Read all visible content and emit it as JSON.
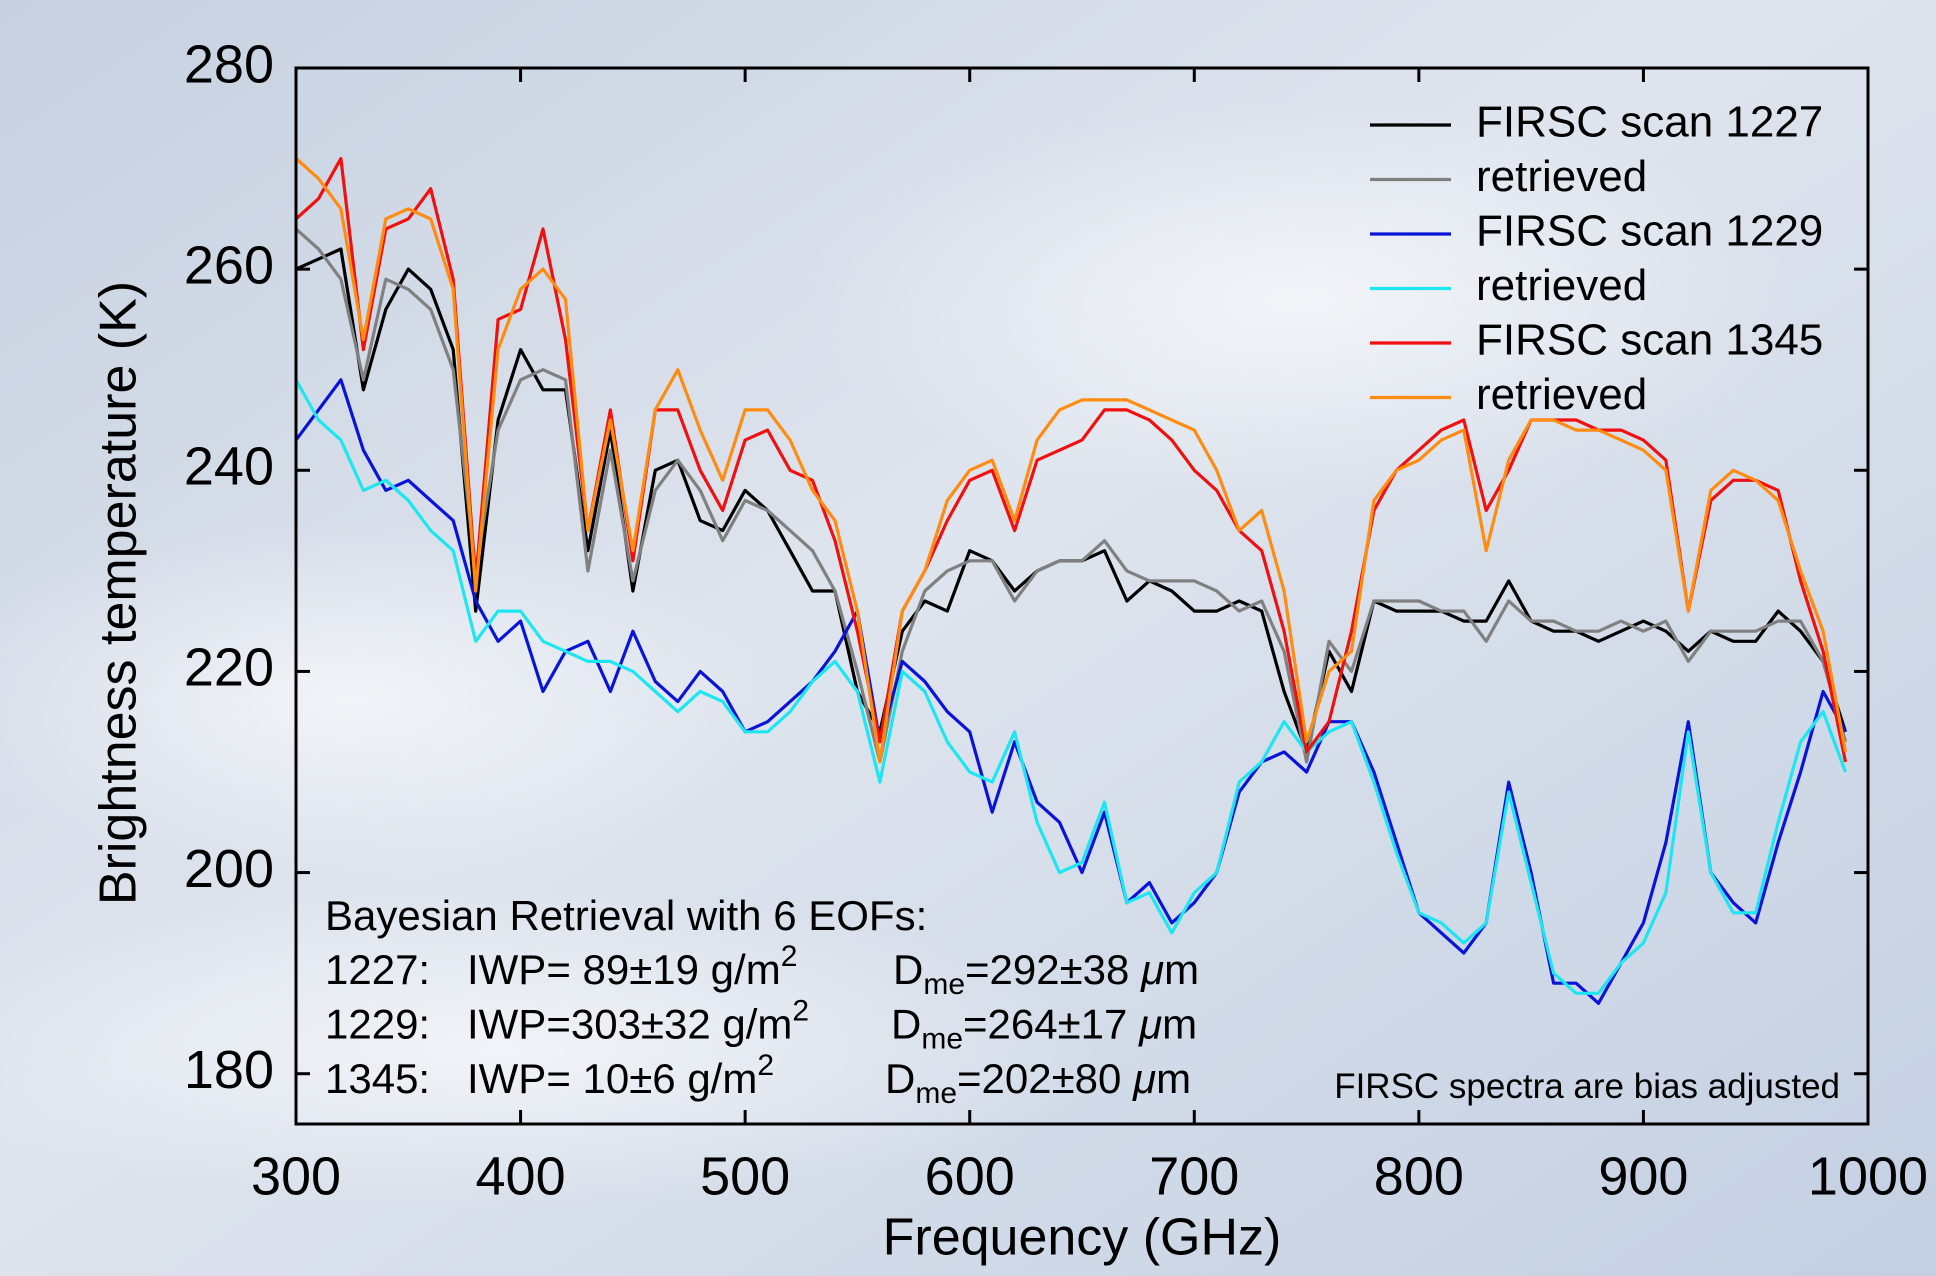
{
  "chart_data": {
    "type": "line",
    "x_label": "Frequency (GHz)",
    "y_label": "Brightness temperature (K)",
    "x": [
      300,
      310,
      320,
      330,
      340,
      350,
      360,
      370,
      380,
      390,
      400,
      410,
      420,
      430,
      440,
      450,
      460,
      470,
      480,
      490,
      500,
      510,
      520,
      530,
      540,
      550,
      560,
      570,
      580,
      590,
      600,
      610,
      620,
      630,
      640,
      650,
      660,
      670,
      680,
      690,
      700,
      710,
      720,
      730,
      740,
      750,
      760,
      770,
      780,
      790,
      800,
      810,
      820,
      830,
      840,
      850,
      860,
      870,
      880,
      890,
      900,
      910,
      920,
      930,
      940,
      950,
      960,
      970,
      980,
      990
    ],
    "xlim": [
      300,
      1000
    ],
    "xticks": [
      300,
      400,
      500,
      600,
      700,
      800,
      900,
      1000
    ],
    "ylim": [
      175,
      280
    ],
    "yticks": [
      180,
      200,
      220,
      240,
      260,
      280
    ],
    "legend": "upper right",
    "series": [
      {
        "name": "FIRSC scan 1227",
        "color": "#000000",
        "values": [
          260,
          261,
          262,
          248,
          256,
          260,
          258,
          252,
          226,
          245,
          252,
          248,
          248,
          232,
          244,
          228,
          240,
          241,
          235,
          234,
          238,
          236,
          232,
          228,
          228,
          218,
          214,
          224,
          227,
          226,
          232,
          231,
          228,
          230,
          231,
          231,
          232,
          227,
          229,
          228,
          226,
          226,
          227,
          226,
          218,
          212,
          222,
          218,
          227,
          226,
          226,
          226,
          225,
          225,
          229,
          225,
          224,
          224,
          223,
          224,
          225,
          224,
          222,
          224,
          223,
          223,
          226,
          224,
          221,
          214
        ]
      },
      {
        "name": "retrieved",
        "color": "#808080",
        "values": [
          264,
          262,
          259,
          249,
          259,
          258,
          256,
          250,
          230,
          244,
          249,
          250,
          249,
          230,
          242,
          229,
          238,
          241,
          238,
          233,
          237,
          236,
          234,
          232,
          228,
          220,
          211,
          222,
          228,
          230,
          231,
          231,
          227,
          230,
          231,
          231,
          233,
          230,
          229,
          229,
          229,
          228,
          226,
          227,
          222,
          211,
          223,
          220,
          227,
          227,
          227,
          226,
          226,
          223,
          227,
          225,
          225,
          224,
          224,
          225,
          224,
          225,
          221,
          224,
          224,
          224,
          225,
          225,
          221,
          213
        ]
      },
      {
        "name": "FIRSC scan 1229",
        "color": "#0a14d8",
        "values": [
          243,
          246,
          249,
          242,
          238,
          239,
          237,
          235,
          227,
          223,
          225,
          218,
          222,
          223,
          218,
          224,
          219,
          217,
          220,
          218,
          214,
          215,
          217,
          219,
          222,
          226,
          213,
          221,
          219,
          216,
          214,
          206,
          213,
          207,
          205,
          200,
          206,
          197,
          199,
          195,
          197,
          200,
          208,
          211,
          212,
          210,
          215,
          215,
          210,
          203,
          196,
          194,
          192,
          195,
          209,
          200,
          189,
          189,
          187,
          191,
          195,
          203,
          215,
          200,
          197,
          195,
          203,
          210,
          218,
          214
        ]
      },
      {
        "name": "retrieved",
        "color": "#1ee6f0",
        "values": [
          249,
          245,
          243,
          238,
          239,
          237,
          234,
          232,
          223,
          226,
          226,
          223,
          222,
          221,
          221,
          220,
          218,
          216,
          218,
          217,
          214,
          214,
          216,
          219,
          221,
          218,
          209,
          220,
          218,
          213,
          210,
          209,
          214,
          205,
          200,
          201,
          207,
          197,
          198,
          194,
          198,
          200,
          209,
          211,
          215,
          212,
          214,
          215,
          209,
          202,
          196,
          195,
          193,
          195,
          208,
          199,
          190,
          188,
          188,
          191,
          193,
          198,
          214,
          200,
          196,
          196,
          205,
          213,
          216,
          210
        ]
      },
      {
        "name": "FIRSC scan 1345",
        "color": "#f01010",
        "values": [
          265,
          267,
          271,
          252,
          264,
          265,
          268,
          259,
          229,
          255,
          256,
          264,
          253,
          234,
          246,
          231,
          246,
          246,
          240,
          236,
          243,
          244,
          240,
          239,
          233,
          224,
          213,
          226,
          230,
          235,
          239,
          240,
          234,
          241,
          242,
          243,
          246,
          246,
          245,
          243,
          240,
          238,
          234,
          232,
          224,
          212,
          215,
          224,
          236,
          240,
          242,
          244,
          245,
          236,
          240,
          245,
          245,
          245,
          244,
          244,
          243,
          241,
          226,
          237,
          239,
          239,
          238,
          229,
          222,
          211
        ]
      },
      {
        "name": "retrieved",
        "color": "#ff8c10",
        "values": [
          271,
          269,
          266,
          253,
          265,
          266,
          265,
          258,
          228,
          252,
          258,
          260,
          257,
          234,
          245,
          232,
          246,
          250,
          244,
          239,
          246,
          246,
          243,
          238,
          235,
          226,
          211,
          226,
          230,
          237,
          240,
          241,
          235,
          243,
          246,
          247,
          247,
          247,
          246,
          245,
          244,
          240,
          234,
          236,
          228,
          213,
          220,
          222,
          237,
          240,
          241,
          243,
          244,
          232,
          241,
          245,
          245,
          244,
          244,
          243,
          242,
          240,
          226,
          238,
          240,
          239,
          237,
          230,
          224,
          212
        ]
      }
    ],
    "annotations": {
      "header": "Bayesian Retrieval with 6 EOFs:",
      "rows": [
        {
          "scan": "1227:",
          "iwp": "IWP= 89±19 g/m",
          "iwp_exp": "2",
          "d": "D",
          "d_sub": "me",
          "d_val": "=292±38 ",
          "mu": "μ",
          "unit": "m"
        },
        {
          "scan": "1229:",
          "iwp": "IWP=303±32 g/m",
          "iwp_exp": "2",
          "d": "D",
          "d_sub": "me",
          "d_val": "=264±17 ",
          "mu": "μ",
          "unit": "m"
        },
        {
          "scan": "1345:",
          "iwp": "IWP= 10±6 g/m",
          "iwp_exp": "2",
          "d": "D",
          "d_sub": "me",
          "d_val": "=202±80 ",
          "mu": "μ",
          "unit": "m"
        }
      ],
      "note": "FIRSC spectra are bias adjusted"
    }
  }
}
